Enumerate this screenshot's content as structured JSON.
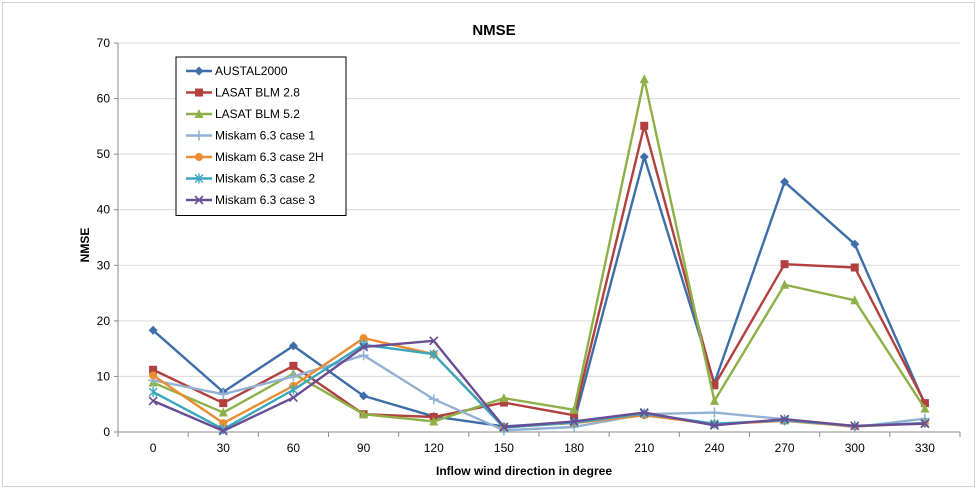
{
  "chart_data": {
    "type": "line",
    "title": "NMSE",
    "xlabel": "Inflow wind direction in degree",
    "ylabel": "NMSE",
    "categories": [
      "0",
      "30",
      "60",
      "90",
      "120",
      "150",
      "180",
      "210",
      "240",
      "270",
      "300",
      "330"
    ],
    "ylim": [
      0,
      70
    ],
    "yticks": [
      0,
      10,
      20,
      30,
      40,
      50,
      60,
      70
    ],
    "grid": "horizontal",
    "legend_position": "top-left",
    "series": [
      {
        "name": "AUSTAL2000",
        "color": "#3E6DA8",
        "marker": "diamond",
        "values": [
          18.3,
          7.2,
          15.5,
          6.5,
          2.8,
          1.0,
          1.8,
          49.5,
          8.8,
          45.0,
          33.8,
          5.0
        ]
      },
      {
        "name": "LASAT BLM 2.8",
        "color": "#B2403E",
        "marker": "square",
        "values": [
          11.2,
          5.2,
          11.9,
          3.2,
          2.7,
          5.3,
          3.0,
          55.1,
          8.4,
          30.2,
          29.6,
          5.2
        ]
      },
      {
        "name": "LASAT BLM 5.2",
        "color": "#8DB048",
        "marker": "triangle",
        "values": [
          8.9,
          3.5,
          10.5,
          3.2,
          1.9,
          6.1,
          4.0,
          63.5,
          5.6,
          26.5,
          23.7,
          4.2
        ]
      },
      {
        "name": "Miskam 6.3 case 1",
        "color": "#93B1D4",
        "marker": "plus",
        "values": [
          9.3,
          6.8,
          10.0,
          13.8,
          5.9,
          0.3,
          0.9,
          3.2,
          3.5,
          2.3,
          0.9,
          2.4
        ]
      },
      {
        "name": "Miskam 6.3 case 2H",
        "color": "#EA8D32",
        "marker": "circle",
        "values": [
          10.2,
          1.6,
          8.3,
          16.9,
          14.0,
          0.9,
          1.6,
          3.0,
          1.4,
          2.0,
          1.0,
          1.6
        ]
      },
      {
        "name": "Miskam 6.3 case 2",
        "color": "#3BA7BF",
        "marker": "star",
        "values": [
          7.2,
          0.5,
          7.6,
          15.7,
          14.0,
          0.8,
          1.7,
          3.3,
          1.5,
          2.1,
          1.1,
          1.6
        ]
      },
      {
        "name": "Miskam 6.3 case 3",
        "color": "#6A4C94",
        "marker": "x",
        "values": [
          5.6,
          0.2,
          6.2,
          15.3,
          16.4,
          0.9,
          1.9,
          3.5,
          1.2,
          2.3,
          1.1,
          1.5
        ]
      }
    ]
  }
}
